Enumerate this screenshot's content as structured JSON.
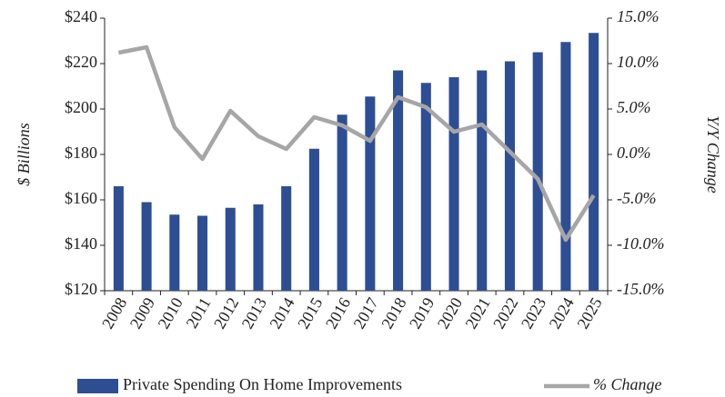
{
  "chart_data": {
    "type": "bar",
    "y_label": "$ Billions",
    "y2_label": "Y/Y Change",
    "categories": [
      "2008",
      "2009",
      "2010",
      "2011",
      "2012",
      "2013",
      "2014",
      "2015",
      "2016",
      "2017",
      "2018",
      "2019",
      "2020",
      "2021",
      "2022",
      "2023",
      "2024",
      "2025"
    ],
    "series": [
      {
        "name": "Private Spending On Home Improvements",
        "type": "bar",
        "color": "#2e4e94",
        "values": [
          166,
          159,
          153.5,
          153,
          156.5,
          158,
          166,
          182.5,
          197.5,
          205.5,
          217,
          211.5,
          214,
          217,
          221,
          225,
          229.5,
          233.5
        ]
      },
      {
        "name": "% Change",
        "type": "line",
        "axis": "y2",
        "color": "#a6a6a6",
        "values": [
          11.2,
          11.8,
          3.0,
          -0.5,
          4.8,
          2.0,
          0.6,
          4.1,
          3.2,
          1.5,
          6.3,
          5.2,
          2.5,
          3.3,
          0.3,
          -2.7,
          -9.4,
          -4.5
        ]
      }
    ],
    "ylim": [
      120,
      240
    ],
    "yticks": [
      {
        "value": 120,
        "label": "$120"
      },
      {
        "value": 140,
        "label": "$140"
      },
      {
        "value": 160,
        "label": "$160"
      },
      {
        "value": 180,
        "label": "$180"
      },
      {
        "value": 200,
        "label": "$200"
      },
      {
        "value": 220,
        "label": "$220"
      },
      {
        "value": 240,
        "label": "$240"
      }
    ],
    "y2lim": [
      -15,
      15
    ],
    "y2ticks": [
      {
        "value": -15,
        "label": "-15.0%"
      },
      {
        "value": -10,
        "label": "-10.0%"
      },
      {
        "value": -5,
        "label": "-5.0%"
      },
      {
        "value": 0,
        "label": "0.0%"
      },
      {
        "value": 5,
        "label": "5.0%"
      },
      {
        "value": 10,
        "label": "10.0%"
      },
      {
        "value": 15,
        "label": "15.0%"
      }
    ],
    "legend": "bottom",
    "grid": false
  }
}
